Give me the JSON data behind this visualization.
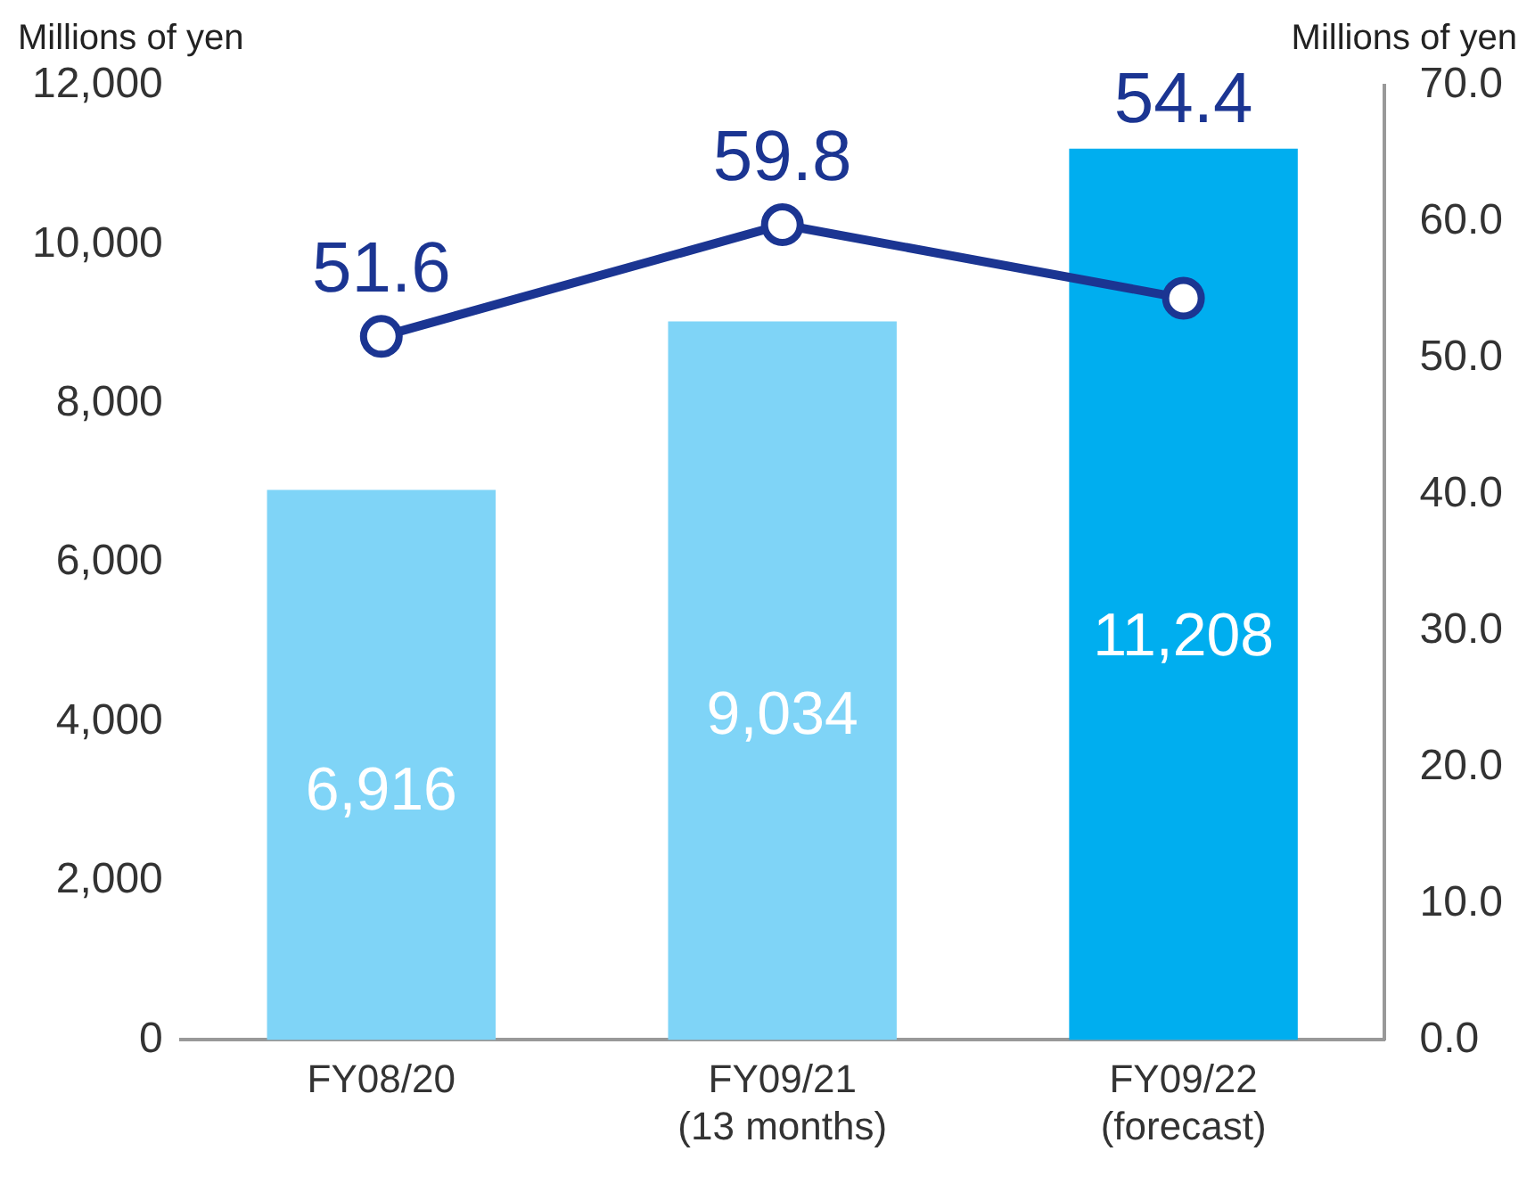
{
  "chart_data": {
    "type": "bar",
    "ylabel": "Millions of yen",
    "y2label": "Millions of yen",
    "categories": [
      "FY08/20",
      "FY09/21\n(13 months)",
      "FY09/22\n(forecast)"
    ],
    "series": [
      {
        "colors": [
          "#7fd4f7",
          "#7fd4f7",
          "#00aeef"
        ],
        "values": [
          6916,
          9034,
          11208
        ],
        "value_labels": [
          "6,916",
          "9,034",
          "11,208"
        ]
      },
      {
        "type": "line",
        "axis": "y2",
        "color": "#1b3592",
        "marker": "circle",
        "values": [
          51.6,
          59.8,
          54.4
        ],
        "value_labels": [
          "51.6",
          "59.8",
          "54.4"
        ]
      }
    ],
    "ylim": [
      0,
      12000
    ],
    "yticks": [
      0,
      {
        "value": 2000,
        "label": "2,000"
      },
      {
        "value": 4000,
        "label": "4,000"
      },
      {
        "value": 6000,
        "label": "6,000"
      },
      {
        "value": 8000,
        "label": "8,000"
      },
      {
        "value": 10000,
        "label": "10,000"
      },
      {
        "value": 12000,
        "label": "12,000"
      }
    ],
    "y2lim": [
      0,
      70
    ],
    "y2ticks": [
      {
        "value": 0,
        "label": "0.0"
      },
      {
        "value": 10,
        "label": "10.0"
      },
      {
        "value": 20,
        "label": "20.0"
      },
      {
        "value": 30,
        "label": "30.0"
      },
      {
        "value": 40,
        "label": "40.0"
      },
      {
        "value": 50,
        "label": "50.0"
      },
      {
        "value": 60,
        "label": "60.0"
      },
      {
        "value": 70,
        "label": "70.0"
      }
    ],
    "grid": false,
    "legend": false
  }
}
